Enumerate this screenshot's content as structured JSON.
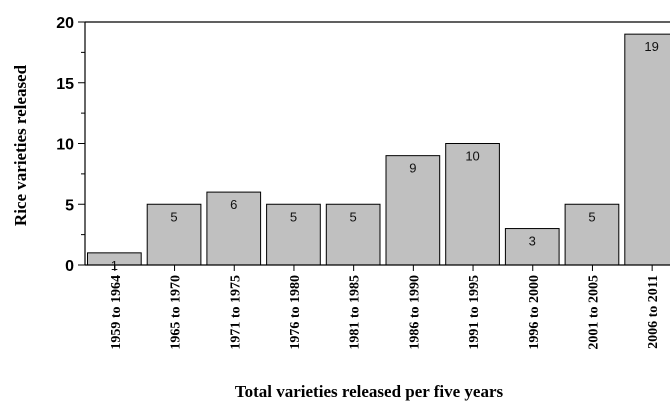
{
  "chart_data": {
    "type": "bar",
    "categories": [
      "1959 to 1964",
      "1965 to 1970",
      "1971 to 1975",
      "1976 to 1980",
      "1981 to 1985",
      "1986 to 1990",
      "1991 to 1995",
      "1996 to 2000",
      "2001 to 2005",
      "2006 to 2011"
    ],
    "values": [
      1,
      5,
      6,
      5,
      5,
      9,
      10,
      3,
      5,
      19
    ],
    "data_labels": [
      "1",
      "5",
      "6",
      "5",
      "5",
      "9",
      "10",
      "3",
      "5",
      "19"
    ],
    "title": "",
    "xlabel": "Total varieties released per five years",
    "ylabel": "Rice varieties released",
    "ylim": [
      0,
      20
    ],
    "yticks": [
      0,
      5,
      10,
      15,
      20
    ],
    "grid": false,
    "bar_color": "#c0c0c0"
  }
}
